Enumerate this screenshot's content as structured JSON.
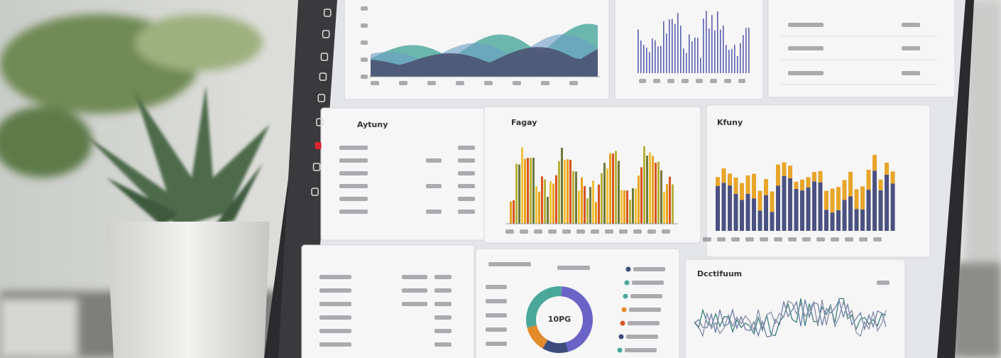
{
  "screen": {
    "panels": [
      {
        "title": "Aytuny"
      },
      {
        "title": "Fagay"
      },
      {
        "title": "Kfuny"
      },
      {
        "title": "Dcctifuum"
      }
    ],
    "donut_center": "10PG"
  }
}
